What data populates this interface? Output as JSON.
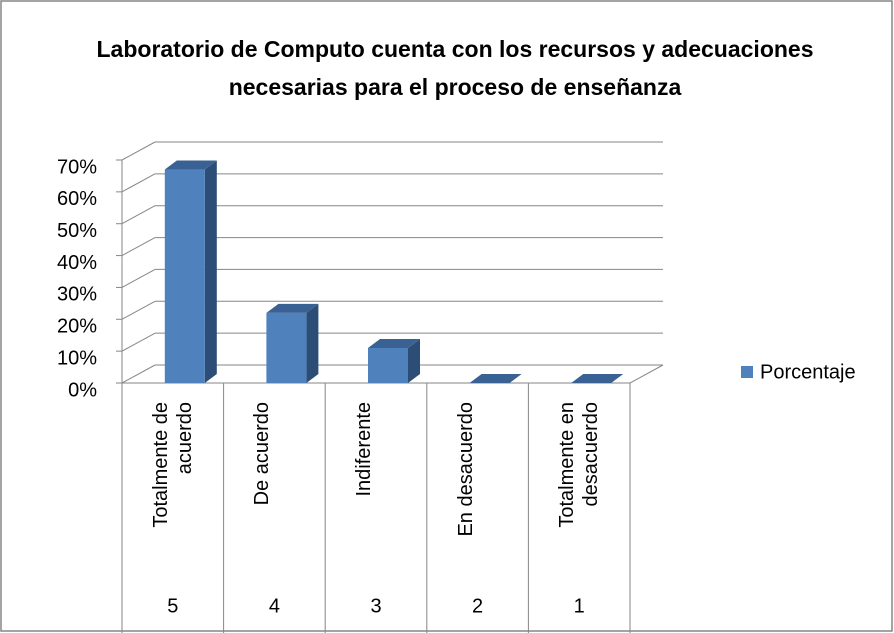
{
  "chart_data": {
    "type": "bar3d",
    "title": "Laboratorio de Computo cuenta con los recursos y adecuaciones necesarias para el proceso de enseñanza",
    "categories": [
      "Totalmente de acuerdo",
      "De acuerdo",
      "Indiferente",
      "En desacuerdo",
      "Totalmente en desacuerdo"
    ],
    "category_codes": [
      "5",
      "4",
      "3",
      "2",
      "1"
    ],
    "series": [
      {
        "name": "Porcentaje",
        "color": "#4f81bd",
        "values": [
          67,
          22,
          11,
          0,
          0
        ]
      }
    ],
    "ylim": [
      0,
      70
    ],
    "yticks": [
      {
        "value": 0,
        "label": "0%"
      },
      {
        "value": 10,
        "label": "10%"
      },
      {
        "value": 20,
        "label": "20%"
      },
      {
        "value": 30,
        "label": "30%"
      },
      {
        "value": 40,
        "label": "40%"
      },
      {
        "value": 50,
        "label": "50%"
      },
      {
        "value": 60,
        "label": "60%"
      },
      {
        "value": 70,
        "label": "70%"
      }
    ],
    "grid": true,
    "legend": "right"
  }
}
